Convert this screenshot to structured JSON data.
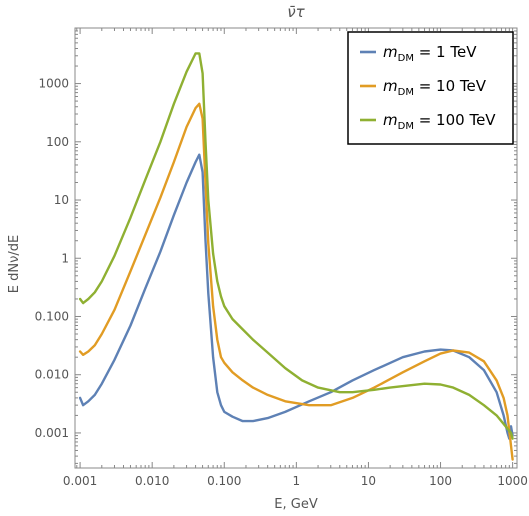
{
  "chart_data": {
    "type": "line",
    "title": "ν̄τ",
    "xlabel": "E, GeV",
    "ylabel": "E dNν/dE",
    "x_scale": "log",
    "y_scale": "log",
    "xlim": [
      0.00085,
      1150
    ],
    "ylim": [
      0.00025,
      9000
    ],
    "x_ticks": [
      0.001,
      0.01,
      0.1,
      1,
      10,
      100,
      1000
    ],
    "x_tick_labels": [
      "0.001",
      "0.010",
      "0.100",
      "1",
      "10",
      "100",
      "1000"
    ],
    "y_ticks": [
      0.001,
      0.01,
      0.1,
      1,
      10,
      100,
      1000
    ],
    "y_tick_labels": [
      "0.001",
      "0.010",
      "0.100",
      "1",
      "10",
      "100",
      "1000"
    ],
    "grid": false,
    "legend": {
      "position": "top-right",
      "entries": [
        {
          "prefix": "m",
          "sub": "DM",
          "suffix": " = 1 TeV"
        },
        {
          "prefix": "m",
          "sub": "DM",
          "suffix": " = 10 TeV"
        },
        {
          "prefix": "m",
          "sub": "DM",
          "suffix": " = 100 TeV"
        }
      ]
    },
    "series": [
      {
        "name": "mDM = 1 TeV",
        "color": "#5e81b5",
        "x": [
          0.001,
          0.0011,
          0.0013,
          0.0016,
          0.002,
          0.003,
          0.005,
          0.008,
          0.013,
          0.02,
          0.03,
          0.04,
          0.045,
          0.05,
          0.055,
          0.06,
          0.07,
          0.08,
          0.09,
          0.1,
          0.13,
          0.18,
          0.25,
          0.4,
          0.7,
          1.5,
          3,
          6,
          12,
          30,
          60,
          100,
          150,
          250,
          400,
          600,
          750,
          850,
          900,
          950,
          1000
        ],
        "y": [
          0.004,
          0.003,
          0.0035,
          0.0045,
          0.007,
          0.018,
          0.07,
          0.3,
          1.3,
          5.5,
          20,
          45,
          60,
          30,
          2.0,
          0.25,
          0.02,
          0.005,
          0.003,
          0.0023,
          0.0019,
          0.0016,
          0.0016,
          0.0018,
          0.0023,
          0.0035,
          0.005,
          0.008,
          0.012,
          0.02,
          0.025,
          0.027,
          0.026,
          0.02,
          0.012,
          0.005,
          0.002,
          0.001,
          0.0008,
          0.0013,
          0.0009
        ]
      },
      {
        "name": "mDM = 10 TeV",
        "color": "#e19c24",
        "x": [
          0.001,
          0.0011,
          0.0013,
          0.0016,
          0.002,
          0.003,
          0.005,
          0.008,
          0.013,
          0.02,
          0.03,
          0.04,
          0.045,
          0.05,
          0.055,
          0.06,
          0.07,
          0.08,
          0.09,
          0.1,
          0.13,
          0.18,
          0.25,
          0.4,
          0.7,
          1.5,
          3,
          6,
          12,
          30,
          60,
          100,
          150,
          250,
          400,
          600,
          750,
          850,
          1000
        ],
        "y": [
          0.025,
          0.022,
          0.025,
          0.032,
          0.05,
          0.13,
          0.6,
          2.5,
          11,
          45,
          180,
          380,
          450,
          250,
          20,
          1.8,
          0.15,
          0.04,
          0.02,
          0.016,
          0.011,
          0.008,
          0.006,
          0.0045,
          0.0035,
          0.003,
          0.003,
          0.004,
          0.006,
          0.011,
          0.017,
          0.023,
          0.026,
          0.024,
          0.017,
          0.008,
          0.004,
          0.002,
          0.00035
        ]
      },
      {
        "name": "mDM = 100 TeV",
        "color": "#8fb032",
        "x": [
          0.001,
          0.0011,
          0.0013,
          0.0016,
          0.002,
          0.003,
          0.005,
          0.008,
          0.013,
          0.02,
          0.03,
          0.04,
          0.045,
          0.05,
          0.055,
          0.06,
          0.07,
          0.08,
          0.09,
          0.1,
          0.13,
          0.18,
          0.25,
          0.4,
          0.7,
          1.2,
          2,
          4,
          6,
          8,
          12,
          20,
          35,
          60,
          100,
          150,
          250,
          400,
          600,
          800,
          950,
          1000
        ],
        "y": [
          0.2,
          0.17,
          0.2,
          0.26,
          0.4,
          1.1,
          5,
          22,
          100,
          450,
          1600,
          3300,
          3300,
          1500,
          100,
          10,
          1.2,
          0.4,
          0.22,
          0.15,
          0.09,
          0.06,
          0.04,
          0.024,
          0.013,
          0.008,
          0.006,
          0.005,
          0.005,
          0.0052,
          0.0055,
          0.006,
          0.0065,
          0.007,
          0.0068,
          0.006,
          0.0045,
          0.003,
          0.002,
          0.0013,
          0.001,
          0.0008
        ]
      }
    ]
  }
}
